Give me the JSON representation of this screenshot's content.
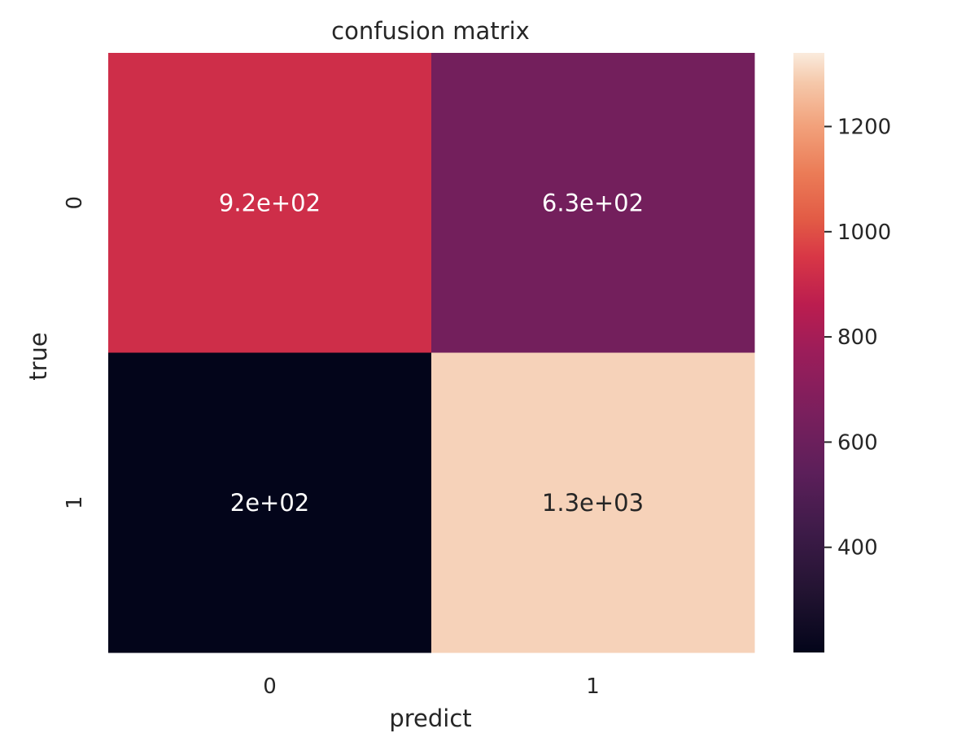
{
  "chart_data": {
    "type": "heatmap",
    "title": "confusion matrix",
    "xlabel": "predict",
    "ylabel": "true",
    "x_categories": [
      "0",
      "1"
    ],
    "y_categories": [
      "0",
      "1"
    ],
    "values": [
      [
        920,
        630
      ],
      [
        200,
        1300
      ]
    ],
    "annotations": [
      [
        "9.2e+02",
        "6.3e+02"
      ],
      [
        "2e+02",
        "1.3e+03"
      ]
    ],
    "colormap": "rocket",
    "colorbar": {
      "range": [
        200,
        1340
      ],
      "ticks": [
        400,
        600,
        800,
        1000,
        1200
      ],
      "tick_labels": [
        "400",
        "600",
        "800",
        "1000",
        "1200"
      ]
    },
    "annotation_colors": {
      "on_dark": "#ffffff",
      "on_light": "#262626"
    },
    "grid": false
  }
}
